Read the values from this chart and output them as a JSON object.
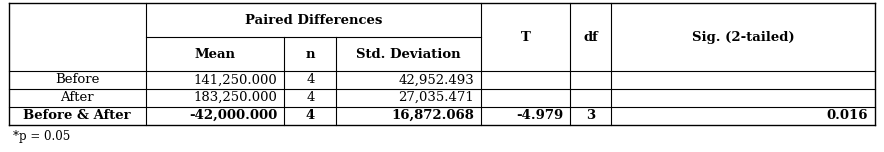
{
  "title_note": "*p = 0.05",
  "paired_diff_header": "Paired Differences",
  "col_header2_labels": [
    "Mean",
    "n",
    "Std. Deviation"
  ],
  "extra_headers": [
    "T",
    "df",
    "Sig. (2-tailed)"
  ],
  "row_labels": [
    "Before",
    "After",
    "Before & After"
  ],
  "row_bold": [
    false,
    false,
    true
  ],
  "data": [
    [
      "141,250.000",
      "4",
      "42,952.493",
      "",
      "",
      ""
    ],
    [
      "183,250.000",
      "4",
      "27,035.471",
      "",
      "",
      ""
    ],
    [
      "-42,000.000",
      "4",
      "16,872.068",
      "-4.979",
      "3",
      "0.016"
    ]
  ],
  "bg_color": "#ffffff",
  "font_size": 9.5,
  "figsize": [
    8.84,
    1.52
  ],
  "dpi": 100
}
